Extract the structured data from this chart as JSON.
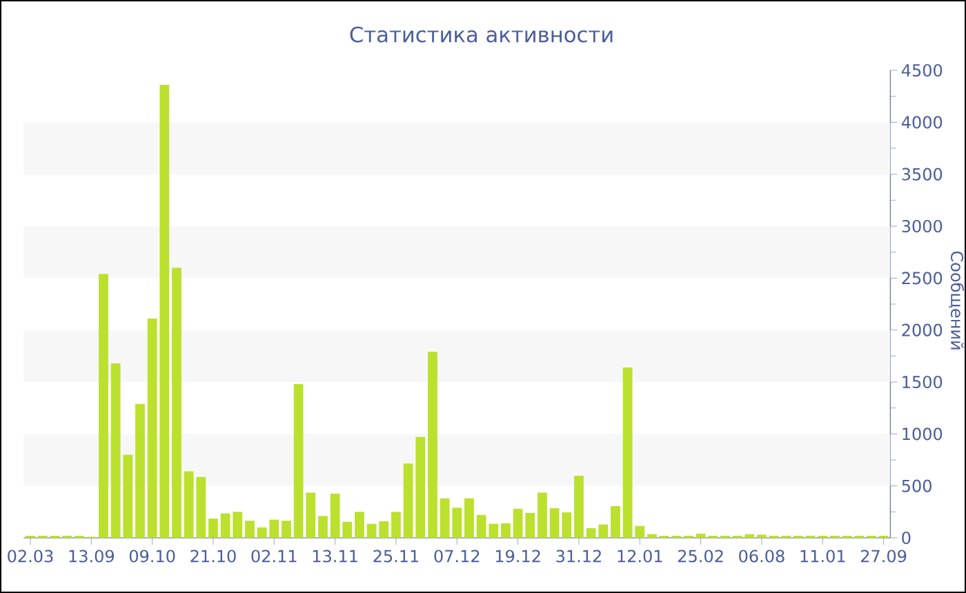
{
  "chart_data": {
    "type": "bar",
    "title": "Статистика активности",
    "ylabel": "Сообщений",
    "categories": [
      "02.03",
      null,
      null,
      null,
      null,
      "13.09",
      null,
      null,
      null,
      null,
      "09.10",
      null,
      null,
      null,
      null,
      "21.10",
      null,
      null,
      null,
      null,
      "02.11",
      null,
      null,
      null,
      null,
      "13.11",
      null,
      null,
      null,
      null,
      "25.11",
      null,
      null,
      null,
      null,
      "07.12",
      null,
      null,
      null,
      null,
      "19.12",
      null,
      null,
      null,
      null,
      "31.12",
      null,
      null,
      null,
      null,
      "12.01",
      null,
      null,
      null,
      null,
      "25.02",
      null,
      null,
      null,
      null,
      "06.08",
      null,
      null,
      null,
      null,
      "11.01",
      null,
      null,
      null,
      null,
      "27.09"
    ],
    "values": [
      20,
      20,
      20,
      20,
      20,
      10,
      2540,
      1680,
      800,
      1290,
      2110,
      4360,
      2600,
      640,
      585,
      185,
      235,
      250,
      165,
      100,
      175,
      165,
      1480,
      434,
      210,
      425,
      155,
      250,
      135,
      160,
      250,
      715,
      970,
      1790,
      380,
      290,
      380,
      220,
      135,
      140,
      280,
      240,
      434,
      285,
      245,
      597,
      93,
      128,
      305,
      1640,
      115,
      35,
      20,
      20,
      20,
      40,
      20,
      20,
      20,
      35,
      30,
      20,
      20,
      20,
      20,
      20,
      20,
      20,
      20,
      20,
      20
    ],
    "color": "#bbe02d",
    "ylim": [
      0,
      4500
    ],
    "yticks": [
      0,
      500,
      1000,
      1500,
      2000,
      2500,
      3000,
      3500,
      4000,
      4500
    ],
    "bands": [
      {
        "axis": "y",
        "from": 500,
        "to": 1000,
        "color": "#f7f7f7"
      },
      {
        "axis": "y",
        "from": 1500,
        "to": 2000,
        "color": "#f7f7f7"
      },
      {
        "axis": "y",
        "from": 2500,
        "to": 3000,
        "color": "#f7f7f7"
      },
      {
        "axis": "y",
        "from": 3500,
        "to": 4000,
        "color": "#f7f7f7"
      }
    ]
  }
}
